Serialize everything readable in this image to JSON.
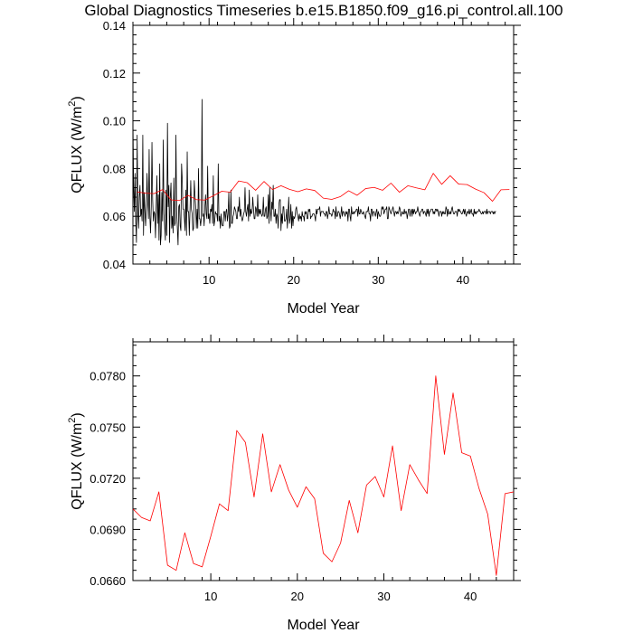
{
  "title": "Global Diagnostics Timeseries b.e15.B1850.f09_g16.pi_control.all.100",
  "chart_data": [
    {
      "type": "line",
      "xlabel": "Model Year",
      "ylabel_main": "QFLUX (W/m",
      "ylabel_sup": "2",
      "ylabel_end": ")",
      "xlim": [
        1,
        46
      ],
      "ylim": [
        0.04,
        0.14
      ],
      "xticks": [
        10,
        20,
        30,
        40
      ],
      "xtick_labels": [
        "10",
        "20",
        "30",
        "40"
      ],
      "yticks": [
        0.04,
        0.06,
        0.08,
        0.1,
        0.12,
        0.14
      ],
      "ytick_labels": [
        "0.04",
        "0.06",
        "0.08",
        "0.10",
        "0.12",
        "0.14"
      ],
      "monthly_start_year": 1,
      "series": [
        {
          "color": "#000000",
          "values": [
            0.101,
            0.072,
            0.062,
            0.078,
            0.058,
            0.049,
            0.094,
            0.061,
            0.055,
            0.068,
            0.073,
            0.06,
            0.063,
            0.058,
            0.094,
            0.052,
            0.07,
            0.062,
            0.056,
            0.064,
            0.078,
            0.066,
            0.059,
            0.088,
            0.06,
            0.053,
            0.064,
            0.091,
            0.067,
            0.058,
            0.062,
            0.061,
            0.051,
            0.065,
            0.077,
            0.057,
            0.069,
            0.05,
            0.082,
            0.048,
            0.052,
            0.07,
            0.058,
            0.092,
            0.061,
            0.056,
            0.05,
            0.071,
            0.052,
            0.099,
            0.064,
            0.073,
            0.049,
            0.068,
            0.074,
            0.055,
            0.06,
            0.053,
            0.076,
            0.056,
            0.057,
            0.094,
            0.062,
            0.055,
            0.048,
            0.064,
            0.065,
            0.056,
            0.054,
            0.082,
            0.075,
            0.063,
            0.063,
            0.059,
            0.054,
            0.071,
            0.052,
            0.087,
            0.062,
            0.062,
            0.052,
            0.063,
            0.075,
            0.063,
            0.061,
            0.054,
            0.055,
            0.075,
            0.069,
            0.064,
            0.055,
            0.063,
            0.055,
            0.08,
            0.059,
            0.059,
            0.056,
            0.059,
            0.109,
            0.06,
            0.061,
            0.056,
            0.064,
            0.069,
            0.061,
            0.059,
            0.081,
            0.059,
            0.061,
            0.057,
            0.063,
            0.062,
            0.065,
            0.057,
            0.077,
            0.056,
            0.058,
            0.062,
            0.061,
            0.061,
            0.058,
            0.082,
            0.058,
            0.06,
            0.055,
            0.061,
            0.057,
            0.056,
            0.056,
            0.062,
            0.062,
            0.058,
            0.062,
            0.063,
            0.058,
            0.061,
            0.07,
            0.055,
            0.056,
            0.071,
            0.057,
            0.057,
            0.06,
            0.061,
            0.064,
            0.063,
            0.062,
            0.059,
            0.059,
            0.064,
            0.062,
            0.068,
            0.06,
            0.063,
            0.06,
            0.058,
            0.059,
            0.061,
            0.062,
            0.072,
            0.062,
            0.06,
            0.063,
            0.065,
            0.058,
            0.071,
            0.06,
            0.063,
            0.061,
            0.062,
            0.068,
            0.063,
            0.059,
            0.059,
            0.064,
            0.063,
            0.06,
            0.069,
            0.06,
            0.063,
            0.061,
            0.063,
            0.061,
            0.06,
            0.061,
            0.068,
            0.06,
            0.06,
            0.063,
            0.064,
            0.059,
            0.06,
            0.069,
            0.057,
            0.072,
            0.063,
            0.058,
            0.066,
            0.063,
            0.073,
            0.06,
            0.06,
            0.063,
            0.057,
            0.061,
            0.06,
            0.055,
            0.065,
            0.067,
            0.067,
            0.054,
            0.061,
            0.057,
            0.064,
            0.064,
            0.058,
            0.058,
            0.059,
            0.063,
            0.055,
            0.061,
            0.068,
            0.057,
            0.059,
            0.065,
            0.055,
            0.062,
            0.056,
            0.06,
            0.059,
            0.06,
            0.063,
            0.064,
            0.061,
            0.06,
            0.058,
            0.061,
            0.059,
            0.06,
            0.058,
            0.062,
            0.06,
            0.06,
            0.058,
            0.062,
            0.061,
            0.062,
            0.059,
            0.059,
            0.063,
            0.062,
            0.063,
            0.059,
            0.06,
            0.06,
            0.061,
            0.061,
            0.061,
            0.06,
            0.058,
            0.063,
            0.061,
            0.063,
            0.063,
            0.063,
            0.064,
            0.06,
            0.062,
            0.062,
            0.062,
            0.062,
            0.061,
            0.061,
            0.06,
            0.062,
            0.062,
            0.059,
            0.061,
            0.064,
            0.061,
            0.061,
            0.061,
            0.06,
            0.061,
            0.063,
            0.062,
            0.062,
            0.059,
            0.064,
            0.06,
            0.06,
            0.062,
            0.062,
            0.061,
            0.059,
            0.061,
            0.064,
            0.06,
            0.062,
            0.062,
            0.061,
            0.06,
            0.062,
            0.061,
            0.062,
            0.058,
            0.063,
            0.063,
            0.06,
            0.058,
            0.064,
            0.061,
            0.061,
            0.062,
            0.061,
            0.062,
            0.062,
            0.063,
            0.063,
            0.06,
            0.064,
            0.061,
            0.061,
            0.063,
            0.062,
            0.061,
            0.061,
            0.062,
            0.061,
            0.06,
            0.059,
            0.062,
            0.062,
            0.062,
            0.064,
            0.061,
            0.061,
            0.058,
            0.063,
            0.063,
            0.06,
            0.062,
            0.062,
            0.061,
            0.06,
            0.062,
            0.063,
            0.059,
            0.062,
            0.061,
            0.06,
            0.06,
            0.061,
            0.064,
            0.063,
            0.064,
            0.061,
            0.062,
            0.063,
            0.063,
            0.064,
            0.059,
            0.059,
            0.064,
            0.063,
            0.062,
            0.061,
            0.062,
            0.063,
            0.064,
            0.062,
            0.06,
            0.062,
            0.062,
            0.061,
            0.062,
            0.061,
            0.062,
            0.064,
            0.063,
            0.06,
            0.061,
            0.062,
            0.061,
            0.061,
            0.063,
            0.061,
            0.062,
            0.062,
            0.059,
            0.061,
            0.063,
            0.063,
            0.06,
            0.062,
            0.063,
            0.06,
            0.063,
            0.061,
            0.063,
            0.062,
            0.061,
            0.062,
            0.062,
            0.064,
            0.062,
            0.061,
            0.06,
            0.062,
            0.062,
            0.063,
            0.063,
            0.061,
            0.062,
            0.062,
            0.061,
            0.06,
            0.063,
            0.061,
            0.063,
            0.06,
            0.062,
            0.062,
            0.063,
            0.063,
            0.063,
            0.061,
            0.062,
            0.061,
            0.063,
            0.063,
            0.062,
            0.063,
            0.062,
            0.06,
            0.062,
            0.062,
            0.062,
            0.06,
            0.062,
            0.061,
            0.062,
            0.061,
            0.061,
            0.064,
            0.063,
            0.06,
            0.063,
            0.061,
            0.061,
            0.062,
            0.061,
            0.063,
            0.064,
            0.062,
            0.061,
            0.061,
            0.062,
            0.062,
            0.062,
            0.06,
            0.063,
            0.062,
            0.063,
            0.062,
            0.062,
            0.061,
            0.061,
            0.062,
            0.063,
            0.061,
            0.063,
            0.061,
            0.06,
            0.062,
            0.062,
            0.061,
            0.063,
            0.061,
            0.062,
            0.063,
            0.061,
            0.061,
            0.06,
            0.063,
            0.061,
            0.062,
            0.061,
            0.062,
            0.062,
            0.062,
            0.063,
            0.062,
            0.062,
            0.061,
            0.061,
            0.062,
            0.061,
            0.062,
            0.062,
            0.062,
            0.061,
            0.063,
            0.061,
            0.062,
            0.062,
            0.062,
            0.061,
            0.062,
            0.062,
            0.062,
            0.061,
            0.062,
            0.061,
            0.062,
            0.062
          ]
        },
        {
          "color": "#ff0000",
          "x": [
            1.5,
            2.5,
            3.5,
            4.5,
            5.5,
            6.5,
            7.5,
            8.5,
            9.5,
            10.5,
            11.5,
            12.5,
            13.5,
            14.5,
            15.5,
            16.5,
            17.5,
            18.5,
            19.5,
            20.5,
            21.5,
            22.5,
            23.5,
            24.5,
            25.5,
            26.5,
            27.5,
            28.5,
            29.5,
            30.5,
            31.5,
            32.5,
            33.5,
            34.5,
            35.5,
            36.5,
            37.5,
            38.5,
            39.5,
            40.5,
            41.5,
            42.5,
            43.5,
            44.5,
            45.5
          ],
          "values": [
            0.0702,
            0.0697,
            0.0695,
            0.0712,
            0.0669,
            0.0666,
            0.0688,
            0.067,
            0.0668,
            0.0686,
            0.0705,
            0.0701,
            0.0748,
            0.0741,
            0.0709,
            0.0746,
            0.0712,
            0.0728,
            0.0713,
            0.0703,
            0.0715,
            0.0708,
            0.0676,
            0.0671,
            0.0682,
            0.0707,
            0.0688,
            0.0716,
            0.0721,
            0.0709,
            0.0739,
            0.0701,
            0.0728,
            0.0719,
            0.0711,
            0.078,
            0.0734,
            0.077,
            0.0735,
            0.0733,
            0.0714,
            0.0699,
            0.0663,
            0.0711,
            0.0712
          ]
        }
      ]
    },
    {
      "type": "line",
      "xlabel": "Model Year",
      "ylabel_main": "QFLUX (W/m",
      "ylabel_sup": "2",
      "ylabel_end": ")",
      "xlim": [
        1,
        45
      ],
      "ylim": [
        0.066,
        0.08
      ],
      "xticks": [
        10,
        20,
        30,
        40
      ],
      "xtick_labels": [
        "10",
        "20",
        "30",
        "40"
      ],
      "yticks": [
        0.066,
        0.069,
        0.072,
        0.075,
        0.078
      ],
      "ytick_labels": [
        "0.0660",
        "0.0690",
        "0.0720",
        "0.0750",
        "0.0780"
      ],
      "series": [
        {
          "color": "#ff0000",
          "x": [
            1,
            2,
            3,
            4,
            5,
            6,
            7,
            8,
            9,
            10,
            11,
            12,
            13,
            14,
            15,
            16,
            17,
            18,
            19,
            20,
            21,
            22,
            23,
            24,
            25,
            26,
            27,
            28,
            29,
            30,
            31,
            32,
            33,
            34,
            35,
            36,
            37,
            38,
            39,
            40,
            41,
            42,
            43,
            44,
            45
          ],
          "values": [
            0.0702,
            0.0697,
            0.0695,
            0.0712,
            0.0669,
            0.0666,
            0.0688,
            0.067,
            0.0668,
            0.0686,
            0.0705,
            0.0701,
            0.0748,
            0.0741,
            0.0709,
            0.0746,
            0.0712,
            0.0728,
            0.0713,
            0.0703,
            0.0715,
            0.0708,
            0.0676,
            0.0671,
            0.0682,
            0.0707,
            0.0688,
            0.0716,
            0.0721,
            0.0709,
            0.0739,
            0.0701,
            0.0728,
            0.0719,
            0.0711,
            0.078,
            0.0734,
            0.077,
            0.0735,
            0.0733,
            0.0714,
            0.0699,
            0.0663,
            0.0711,
            0.0712
          ]
        }
      ]
    }
  ]
}
